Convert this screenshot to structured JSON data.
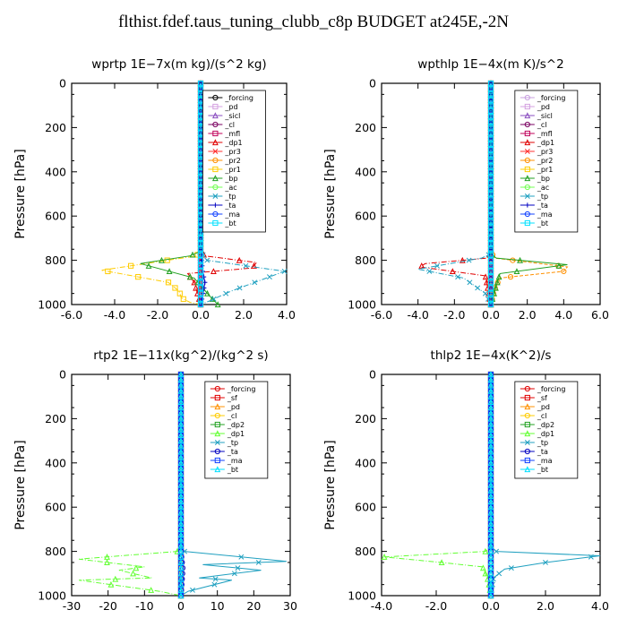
{
  "main_title": "flthist.fdef.taus_tuning_clubb_c8p  BUDGET at245E,-2N",
  "chart_data": [
    {
      "type": "line",
      "title": "wprtp   1E−7x(m kg)/(s^2 kg)",
      "ylabel": "Pressure [hPa]",
      "xlim": [
        -6,
        4
      ],
      "ylim": [
        1000,
        0
      ],
      "xticks": [
        -6,
        -4,
        -2,
        0,
        2,
        4
      ],
      "xtick_labels": [
        "-6.0",
        "-4.0",
        "-2.0",
        "0.0",
        "2.0",
        "4.0"
      ],
      "yticks": [
        0,
        200,
        400,
        600,
        800,
        1000
      ],
      "legend_position": "top-right",
      "series": [
        {
          "name": "_forcing",
          "color": "#000000",
          "x": [
            0,
            0,
            0,
            0,
            0,
            0,
            0
          ],
          "y": [
            0,
            200,
            400,
            600,
            800,
            900,
            1000
          ]
        },
        {
          "name": "_pd",
          "color": "#d4a0e0",
          "x": [
            0,
            0,
            0,
            0
          ],
          "y": [
            0,
            400,
            800,
            1000
          ]
        },
        {
          "name": "_sicl",
          "color": "#8a4ec0",
          "x": [
            0,
            0,
            0,
            0
          ],
          "y": [
            0,
            400,
            800,
            1000
          ]
        },
        {
          "name": "_cl",
          "color": "#7a0060",
          "x": [
            0,
            0,
            0,
            0
          ],
          "y": [
            0,
            400,
            800,
            1000
          ]
        },
        {
          "name": "_mfl",
          "color": "#c0005a",
          "x": [
            0,
            0,
            0,
            0
          ],
          "y": [
            0,
            400,
            800,
            1000
          ]
        },
        {
          "name": "_dp1",
          "color": "#e00000",
          "x": [
            0,
            0,
            0.2,
            2.6,
            2.4,
            -0.6,
            -0.3,
            0
          ],
          "y": [
            0,
            760,
            780,
            810,
            835,
            860,
            900,
            1000
          ]
        },
        {
          "name": "_pr3",
          "color": "#ff3030",
          "x": [
            0,
            0,
            0,
            0
          ],
          "y": [
            0,
            400,
            800,
            1000
          ]
        },
        {
          "name": "_pr2",
          "color": "#ff9000",
          "x": [
            0,
            0,
            0,
            0
          ],
          "y": [
            0,
            400,
            800,
            1000
          ]
        },
        {
          "name": "_pr1",
          "color": "#ffcc00",
          "x": [
            0,
            0,
            -0.2,
            -4.6,
            -1.5,
            -1,
            -0.9,
            -0.5,
            0
          ],
          "y": [
            0,
            760,
            780,
            845,
            900,
            940,
            970,
            990,
            1000
          ]
        },
        {
          "name": "_bp",
          "color": "#20a020",
          "x": [
            0,
            0,
            -0.5,
            -2.8,
            -0.3,
            0.4,
            0.8
          ],
          "y": [
            0,
            760,
            780,
            815,
            880,
            960,
            1000
          ]
        },
        {
          "name": "_ac",
          "color": "#70ff50",
          "x": [
            0,
            0,
            0,
            0
          ],
          "y": [
            0,
            400,
            800,
            1000
          ]
        },
        {
          "name": "_tp",
          "color": "#20a0c0",
          "x": [
            0,
            0,
            0.3,
            3.9,
            1.4,
            0.5,
            0
          ],
          "y": [
            0,
            760,
            800,
            850,
            940,
            980,
            1000
          ]
        },
        {
          "name": "_ta",
          "color": "#0000c0",
          "x": [
            0,
            0,
            0.1,
            0.2,
            0.1,
            0
          ],
          "y": [
            0,
            760,
            850,
            900,
            960,
            1000
          ]
        },
        {
          "name": "_ma",
          "color": "#1040ff",
          "x": [
            0,
            0,
            0,
            0
          ],
          "y": [
            0,
            400,
            800,
            1000
          ]
        },
        {
          "name": "_bt",
          "color": "#00e0ff",
          "x": [
            0,
            0,
            0,
            0
          ],
          "y": [
            0,
            400,
            800,
            1000
          ]
        }
      ]
    },
    {
      "type": "line",
      "title": "wpthlp   1E−4x(m K)/s^2",
      "ylabel": "Pressure [hPa]",
      "xlim": [
        -6,
        6
      ],
      "ylim": [
        1000,
        0
      ],
      "xticks": [
        -6,
        -4,
        -2,
        0,
        2,
        4,
        6
      ],
      "xtick_labels": [
        "-6.0",
        "-4.0",
        "-2.0",
        "0.0",
        "2.0",
        "4.0",
        "6.0"
      ],
      "yticks": [
        0,
        200,
        400,
        600,
        800,
        1000
      ],
      "legend_position": "top-right",
      "series": [
        {
          "name": "_forcing",
          "color": "#c8a0e0",
          "x": [
            0,
            0,
            0,
            0,
            0
          ],
          "y": [
            0,
            200,
            600,
            800,
            1000
          ]
        },
        {
          "name": "_pd",
          "color": "#d4a0e0",
          "x": [
            0,
            0,
            0
          ],
          "y": [
            0,
            500,
            1000
          ]
        },
        {
          "name": "_sicl",
          "color": "#8a4ec0",
          "x": [
            0,
            0,
            0
          ],
          "y": [
            0,
            500,
            1000
          ]
        },
        {
          "name": "_cl",
          "color": "#7a0060",
          "x": [
            0,
            0,
            0
          ],
          "y": [
            0,
            500,
            1000
          ]
        },
        {
          "name": "_mfl",
          "color": "#c0005a",
          "x": [
            0,
            0,
            0
          ],
          "y": [
            0,
            500,
            1000
          ]
        },
        {
          "name": "_dp1",
          "color": "#e00000",
          "x": [
            0,
            0,
            -0.2,
            -3.6,
            -3.9,
            -0.3,
            0
          ],
          "y": [
            0,
            770,
            790,
            815,
            830,
            870,
            1000
          ]
        },
        {
          "name": "_pr3",
          "color": "#ff3030",
          "x": [
            0,
            0,
            0
          ],
          "y": [
            0,
            500,
            1000
          ]
        },
        {
          "name": "_pr2",
          "color": "#ff9000",
          "x": [
            0,
            0,
            0.2,
            4.2,
            4.0,
            0.5,
            0.2,
            0
          ],
          "y": [
            0,
            760,
            790,
            830,
            850,
            880,
            930,
            1000
          ]
        },
        {
          "name": "_pr1",
          "color": "#ffcc00",
          "x": [
            0,
            0,
            0
          ],
          "y": [
            0,
            500,
            1000
          ]
        },
        {
          "name": "_bp",
          "color": "#20a020",
          "x": [
            0,
            0,
            0.3,
            4.2,
            0.5,
            0
          ],
          "y": [
            0,
            770,
            790,
            820,
            860,
            1000
          ]
        },
        {
          "name": "_ac",
          "color": "#70ff50",
          "x": [
            0,
            0,
            0
          ],
          "y": [
            0,
            500,
            1000
          ]
        },
        {
          "name": "_tp",
          "color": "#20a0c0",
          "x": [
            0,
            0,
            -0.5,
            -4.0,
            -1.5,
            -0.3,
            0
          ],
          "y": [
            0,
            770,
            790,
            840,
            880,
            950,
            1000
          ]
        },
        {
          "name": "_ta",
          "color": "#0000c0",
          "x": [
            0,
            0,
            0
          ],
          "y": [
            0,
            500,
            1000
          ]
        },
        {
          "name": "_ma",
          "color": "#1040ff",
          "x": [
            0,
            0,
            0
          ],
          "y": [
            0,
            500,
            1000
          ]
        },
        {
          "name": "_bt",
          "color": "#00e0ff",
          "x": [
            0,
            0,
            0
          ],
          "y": [
            0,
            500,
            1000
          ]
        }
      ]
    },
    {
      "type": "line",
      "title": "rtp2   1E−11x(kg^2)/(kg^2 s)",
      "ylabel": "Pressure [hPa]",
      "xlim": [
        -30,
        30
      ],
      "ylim": [
        1000,
        0
      ],
      "xticks": [
        -30,
        -20,
        -10,
        0,
        10,
        20,
        30
      ],
      "xtick_labels": [
        "-30",
        "-20",
        "-10",
        "0",
        "10",
        "20",
        "30"
      ],
      "yticks": [
        0,
        200,
        400,
        600,
        800,
        1000
      ],
      "legend_position": "top-right",
      "series": [
        {
          "name": "_forcing",
          "color": "#e00000",
          "x": [
            0,
            0,
            0,
            0,
            0,
            0
          ],
          "y": [
            0,
            200,
            400,
            600,
            800,
            1000
          ]
        },
        {
          "name": "_sf",
          "color": "#e00000",
          "x": [
            0,
            0,
            0
          ],
          "y": [
            0,
            500,
            1000
          ]
        },
        {
          "name": "_pd",
          "color": "#ff9000",
          "x": [
            0,
            0,
            0
          ],
          "y": [
            0,
            500,
            1000
          ]
        },
        {
          "name": "_cl",
          "color": "#ffcc00",
          "x": [
            0,
            0,
            0
          ],
          "y": [
            0,
            500,
            1000
          ]
        },
        {
          "name": "_dp2",
          "color": "#20a020",
          "x": [
            0,
            0,
            0
          ],
          "y": [
            0,
            500,
            1000
          ]
        },
        {
          "name": "_dp1",
          "color": "#60ff30",
          "x": [
            0,
            0,
            -1,
            -28,
            -10,
            -17,
            -8,
            -28,
            -6,
            0
          ],
          "y": [
            0,
            780,
            800,
            835,
            870,
            885,
            920,
            930,
            980,
            1000
          ]
        },
        {
          "name": "_tp",
          "color": "#20a0c0",
          "x": [
            0,
            0,
            1,
            29,
            6,
            22,
            5,
            14,
            2,
            0
          ],
          "y": [
            0,
            780,
            800,
            845,
            860,
            885,
            920,
            930,
            980,
            1000
          ]
        },
        {
          "name": "_ta",
          "color": "#0000c0",
          "x": [
            0,
            0,
            0.5,
            0
          ],
          "y": [
            0,
            800,
            880,
            1000
          ]
        },
        {
          "name": "_ma",
          "color": "#1040ff",
          "x": [
            0,
            0,
            0
          ],
          "y": [
            0,
            500,
            1000
          ]
        },
        {
          "name": "_bt",
          "color": "#00e0ff",
          "x": [
            0,
            0,
            0
          ],
          "y": [
            0,
            500,
            1000
          ]
        }
      ]
    },
    {
      "type": "line",
      "title": "thlp2   1E−4x(K^2)/s",
      "ylabel": "Pressure [hPa]",
      "xlim": [
        -4,
        4
      ],
      "ylim": [
        1000,
        0
      ],
      "xticks": [
        -4,
        -2,
        0,
        2,
        4
      ],
      "xtick_labels": [
        "-4.0",
        "-2.0",
        "0.0",
        "2.0",
        "4.0"
      ],
      "yticks": [
        0,
        200,
        400,
        600,
        800,
        1000
      ],
      "legend_position": "top-right",
      "series": [
        {
          "name": "_forcing",
          "color": "#e00000",
          "x": [
            0,
            0,
            0,
            0,
            0,
            0
          ],
          "y": [
            0,
            200,
            400,
            600,
            800,
            1000
          ]
        },
        {
          "name": "_sf",
          "color": "#e00000",
          "x": [
            0,
            0,
            0
          ],
          "y": [
            0,
            500,
            1000
          ]
        },
        {
          "name": "_pd",
          "color": "#ff9000",
          "x": [
            0,
            0,
            0
          ],
          "y": [
            0,
            500,
            1000
          ]
        },
        {
          "name": "_cl",
          "color": "#ffcc00",
          "x": [
            0,
            0,
            0
          ],
          "y": [
            0,
            500,
            1000
          ]
        },
        {
          "name": "_dp2",
          "color": "#20a020",
          "x": [
            0,
            0,
            0
          ],
          "y": [
            0,
            500,
            1000
          ]
        },
        {
          "name": "_dp1",
          "color": "#60ff30",
          "x": [
            0,
            0,
            -0.2,
            -3.9,
            -1.8,
            -0.3,
            -0.1,
            0
          ],
          "y": [
            0,
            780,
            800,
            825,
            850,
            870,
            930,
            1000
          ]
        },
        {
          "name": "_tp",
          "color": "#20a0c0",
          "x": [
            0,
            0,
            0.2,
            4.0,
            2.0,
            0.5,
            0.1,
            0
          ],
          "y": [
            0,
            780,
            800,
            820,
            850,
            880,
            920,
            1000
          ]
        },
        {
          "name": "_ta",
          "color": "#0000c0",
          "x": [
            0,
            0,
            0
          ],
          "y": [
            0,
            500,
            1000
          ]
        },
        {
          "name": "_ma",
          "color": "#1040ff",
          "x": [
            0,
            0,
            0
          ],
          "y": [
            0,
            500,
            1000
          ]
        },
        {
          "name": "_bt",
          "color": "#00e0ff",
          "x": [
            0,
            0,
            0
          ],
          "y": [
            0,
            500,
            1000
          ]
        }
      ]
    }
  ]
}
